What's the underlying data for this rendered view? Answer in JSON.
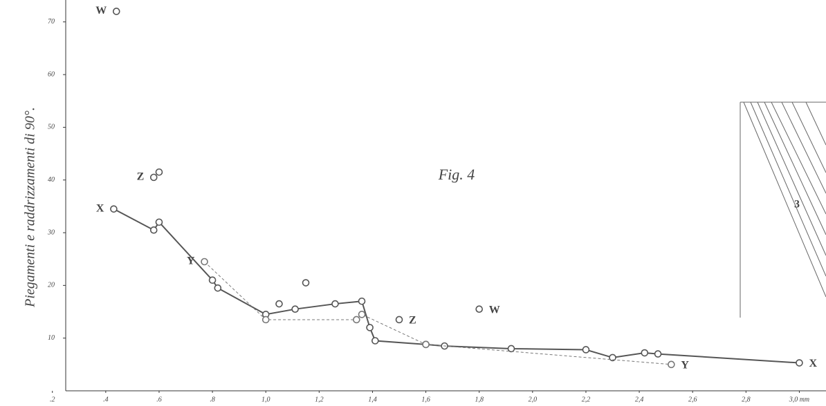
{
  "chart_data": {
    "type": "line",
    "y_label": "Piegamenti e raddrizzamenti di 90°.",
    "annotations": [
      "Fig. 4",
      "3"
    ],
    "xlim": [
      0.25,
      3.1
    ],
    "ylim": [
      0,
      73.5
    ],
    "xticks": [
      {
        "value": 0.2,
        "label": ".2"
      },
      {
        "value": 0.4,
        "label": ".4"
      },
      {
        "value": 0.6,
        "label": ".6"
      },
      {
        "value": 0.8,
        "label": ".8"
      },
      {
        "value": 1.0,
        "label": "1,0"
      },
      {
        "value": 1.2,
        "label": "1,2"
      },
      {
        "value": 1.4,
        "label": "1,4"
      },
      {
        "value": 1.6,
        "label": "1,6"
      },
      {
        "value": 1.8,
        "label": "1,8"
      },
      {
        "value": 2.0,
        "label": "2,0"
      },
      {
        "value": 2.2,
        "label": "2,2"
      },
      {
        "value": 2.4,
        "label": "2,4"
      },
      {
        "value": 2.6,
        "label": "2,6"
      },
      {
        "value": 2.8,
        "label": "2,8"
      },
      {
        "value": 3.0,
        "label": "3,0 mm"
      }
    ],
    "yticks": [
      10,
      20,
      30,
      40,
      50,
      60,
      70
    ],
    "series": [
      {
        "name": "X",
        "color": "#555555",
        "line_style": "solid",
        "x": [
          0.43,
          0.58,
          0.6,
          0.8,
          0.82,
          1.0,
          1.11,
          1.26,
          1.36,
          1.39,
          1.41,
          1.6,
          1.67,
          1.92,
          2.2,
          2.3,
          2.42,
          2.47,
          3.0
        ],
        "values": [
          34.5,
          30.5,
          32,
          21,
          19.5,
          14.5,
          15.5,
          16.5,
          17,
          12,
          9.5,
          8.8,
          8.5,
          8,
          7.8,
          6.3,
          7.2,
          7,
          5.3
        ]
      },
      {
        "name": "Y",
        "color": "#777777",
        "line_style": "dashed",
        "x": [
          0.77,
          1.0,
          1.34,
          1.36,
          1.6,
          2.52
        ],
        "values": [
          24.5,
          13.5,
          13.5,
          14.5,
          8.8,
          5
        ]
      },
      {
        "name": "Z",
        "color": "#555555",
        "line_style": "none",
        "x": [
          0.58,
          0.6,
          1.05,
          1.15,
          1.5
        ],
        "values": [
          40.5,
          41.5,
          16.5,
          20.5,
          13.5
        ]
      },
      {
        "name": "W",
        "color": "#555555",
        "line_style": "none",
        "x": [
          0.44,
          1.8
        ],
        "values": [
          72,
          15.5
        ]
      }
    ]
  }
}
